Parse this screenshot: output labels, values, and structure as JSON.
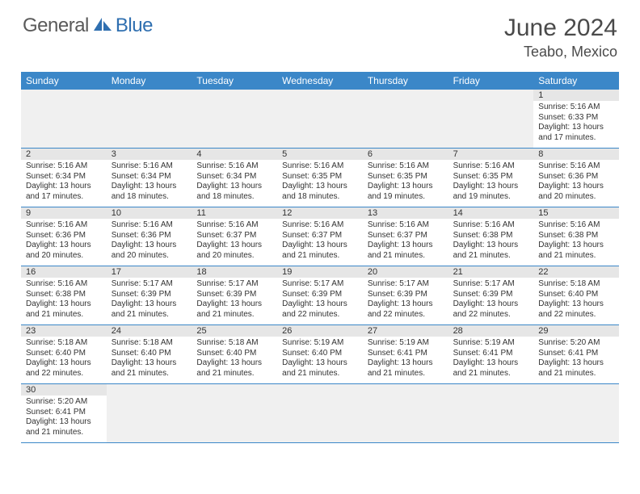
{
  "logo": {
    "word1": "General",
    "word2": "Blue"
  },
  "title": "June 2024",
  "location": "Teabo, Mexico",
  "colors": {
    "header_bg": "#3b87c8",
    "header_text": "#ffffff",
    "daynum_bg": "#e6e6e6",
    "row_border": "#3b87c8",
    "logo_gray": "#5a5a5a",
    "logo_blue": "#2f6fb0"
  },
  "weekdays": [
    "Sunday",
    "Monday",
    "Tuesday",
    "Wednesday",
    "Thursday",
    "Friday",
    "Saturday"
  ],
  "weeks": [
    [
      null,
      null,
      null,
      null,
      null,
      null,
      {
        "d": "1",
        "sr": "Sunrise: 5:16 AM",
        "ss": "Sunset: 6:33 PM",
        "dl": "Daylight: 13 hours and 17 minutes."
      }
    ],
    [
      {
        "d": "2",
        "sr": "Sunrise: 5:16 AM",
        "ss": "Sunset: 6:34 PM",
        "dl": "Daylight: 13 hours and 17 minutes."
      },
      {
        "d": "3",
        "sr": "Sunrise: 5:16 AM",
        "ss": "Sunset: 6:34 PM",
        "dl": "Daylight: 13 hours and 18 minutes."
      },
      {
        "d": "4",
        "sr": "Sunrise: 5:16 AM",
        "ss": "Sunset: 6:34 PM",
        "dl": "Daylight: 13 hours and 18 minutes."
      },
      {
        "d": "5",
        "sr": "Sunrise: 5:16 AM",
        "ss": "Sunset: 6:35 PM",
        "dl": "Daylight: 13 hours and 18 minutes."
      },
      {
        "d": "6",
        "sr": "Sunrise: 5:16 AM",
        "ss": "Sunset: 6:35 PM",
        "dl": "Daylight: 13 hours and 19 minutes."
      },
      {
        "d": "7",
        "sr": "Sunrise: 5:16 AM",
        "ss": "Sunset: 6:35 PM",
        "dl": "Daylight: 13 hours and 19 minutes."
      },
      {
        "d": "8",
        "sr": "Sunrise: 5:16 AM",
        "ss": "Sunset: 6:36 PM",
        "dl": "Daylight: 13 hours and 20 minutes."
      }
    ],
    [
      {
        "d": "9",
        "sr": "Sunrise: 5:16 AM",
        "ss": "Sunset: 6:36 PM",
        "dl": "Daylight: 13 hours and 20 minutes."
      },
      {
        "d": "10",
        "sr": "Sunrise: 5:16 AM",
        "ss": "Sunset: 6:36 PM",
        "dl": "Daylight: 13 hours and 20 minutes."
      },
      {
        "d": "11",
        "sr": "Sunrise: 5:16 AM",
        "ss": "Sunset: 6:37 PM",
        "dl": "Daylight: 13 hours and 20 minutes."
      },
      {
        "d": "12",
        "sr": "Sunrise: 5:16 AM",
        "ss": "Sunset: 6:37 PM",
        "dl": "Daylight: 13 hours and 21 minutes."
      },
      {
        "d": "13",
        "sr": "Sunrise: 5:16 AM",
        "ss": "Sunset: 6:37 PM",
        "dl": "Daylight: 13 hours and 21 minutes."
      },
      {
        "d": "14",
        "sr": "Sunrise: 5:16 AM",
        "ss": "Sunset: 6:38 PM",
        "dl": "Daylight: 13 hours and 21 minutes."
      },
      {
        "d": "15",
        "sr": "Sunrise: 5:16 AM",
        "ss": "Sunset: 6:38 PM",
        "dl": "Daylight: 13 hours and 21 minutes."
      }
    ],
    [
      {
        "d": "16",
        "sr": "Sunrise: 5:16 AM",
        "ss": "Sunset: 6:38 PM",
        "dl": "Daylight: 13 hours and 21 minutes."
      },
      {
        "d": "17",
        "sr": "Sunrise: 5:17 AM",
        "ss": "Sunset: 6:39 PM",
        "dl": "Daylight: 13 hours and 21 minutes."
      },
      {
        "d": "18",
        "sr": "Sunrise: 5:17 AM",
        "ss": "Sunset: 6:39 PM",
        "dl": "Daylight: 13 hours and 21 minutes."
      },
      {
        "d": "19",
        "sr": "Sunrise: 5:17 AM",
        "ss": "Sunset: 6:39 PM",
        "dl": "Daylight: 13 hours and 22 minutes."
      },
      {
        "d": "20",
        "sr": "Sunrise: 5:17 AM",
        "ss": "Sunset: 6:39 PM",
        "dl": "Daylight: 13 hours and 22 minutes."
      },
      {
        "d": "21",
        "sr": "Sunrise: 5:17 AM",
        "ss": "Sunset: 6:39 PM",
        "dl": "Daylight: 13 hours and 22 minutes."
      },
      {
        "d": "22",
        "sr": "Sunrise: 5:18 AM",
        "ss": "Sunset: 6:40 PM",
        "dl": "Daylight: 13 hours and 22 minutes."
      }
    ],
    [
      {
        "d": "23",
        "sr": "Sunrise: 5:18 AM",
        "ss": "Sunset: 6:40 PM",
        "dl": "Daylight: 13 hours and 22 minutes."
      },
      {
        "d": "24",
        "sr": "Sunrise: 5:18 AM",
        "ss": "Sunset: 6:40 PM",
        "dl": "Daylight: 13 hours and 21 minutes."
      },
      {
        "d": "25",
        "sr": "Sunrise: 5:18 AM",
        "ss": "Sunset: 6:40 PM",
        "dl": "Daylight: 13 hours and 21 minutes."
      },
      {
        "d": "26",
        "sr": "Sunrise: 5:19 AM",
        "ss": "Sunset: 6:40 PM",
        "dl": "Daylight: 13 hours and 21 minutes."
      },
      {
        "d": "27",
        "sr": "Sunrise: 5:19 AM",
        "ss": "Sunset: 6:41 PM",
        "dl": "Daylight: 13 hours and 21 minutes."
      },
      {
        "d": "28",
        "sr": "Sunrise: 5:19 AM",
        "ss": "Sunset: 6:41 PM",
        "dl": "Daylight: 13 hours and 21 minutes."
      },
      {
        "d": "29",
        "sr": "Sunrise: 5:20 AM",
        "ss": "Sunset: 6:41 PM",
        "dl": "Daylight: 13 hours and 21 minutes."
      }
    ],
    [
      {
        "d": "30",
        "sr": "Sunrise: 5:20 AM",
        "ss": "Sunset: 6:41 PM",
        "dl": "Daylight: 13 hours and 21 minutes."
      },
      null,
      null,
      null,
      null,
      null,
      null
    ]
  ]
}
